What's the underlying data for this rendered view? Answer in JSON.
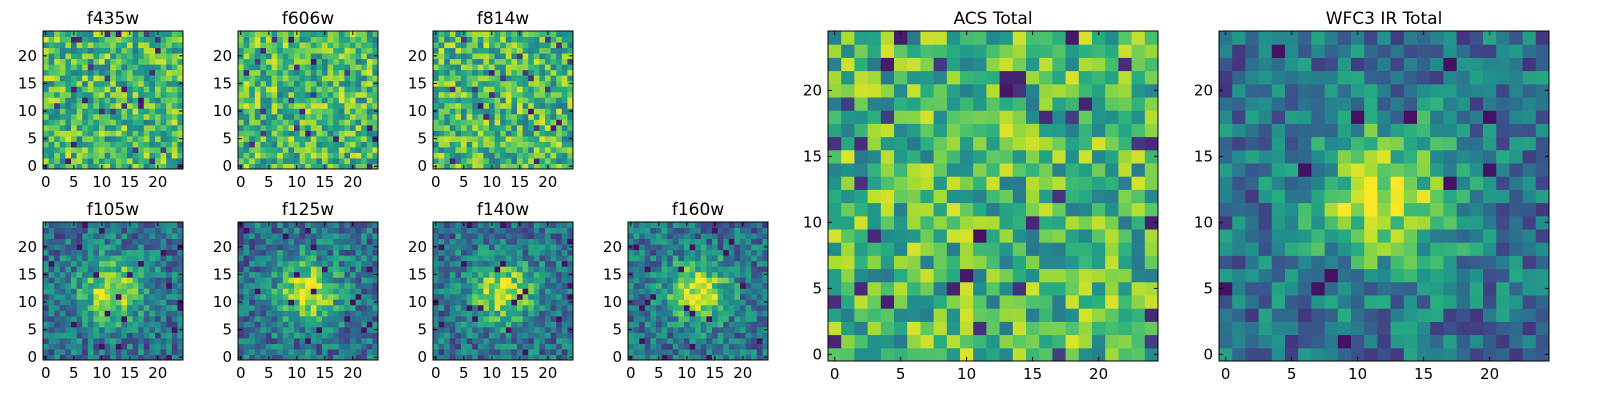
{
  "chart_data": [
    {
      "type": "heatmap",
      "title": "f435w",
      "xticks": [
        "0",
        "5",
        "10",
        "15",
        "20"
      ],
      "yticks": [
        "0",
        "5",
        "10",
        "15",
        "20"
      ],
      "xlim": [
        0,
        24
      ],
      "ylim": [
        0,
        24
      ],
      "grid": false,
      "colormap": "viridis",
      "pattern": "noise"
    },
    {
      "type": "heatmap",
      "title": "f606w",
      "xticks": [
        "0",
        "5",
        "10",
        "15",
        "20"
      ],
      "yticks": [
        "0",
        "5",
        "10",
        "15",
        "20"
      ],
      "xlim": [
        0,
        24
      ],
      "ylim": [
        0,
        24
      ],
      "grid": false,
      "colormap": "viridis",
      "pattern": "noise"
    },
    {
      "type": "heatmap",
      "title": "f814w",
      "xticks": [
        "0",
        "5",
        "10",
        "15",
        "20"
      ],
      "yticks": [
        "0",
        "5",
        "10",
        "15",
        "20"
      ],
      "xlim": [
        0,
        24
      ],
      "ylim": [
        0,
        24
      ],
      "grid": false,
      "colormap": "viridis",
      "pattern": "noise"
    },
    {
      "type": "heatmap",
      "title": "f105w",
      "xticks": [
        "0",
        "5",
        "10",
        "15",
        "20"
      ],
      "yticks": [
        "0",
        "5",
        "10",
        "15",
        "20"
      ],
      "xlim": [
        0,
        24
      ],
      "ylim": [
        0,
        24
      ],
      "grid": false,
      "colormap": "viridis",
      "pattern": "central-source"
    },
    {
      "type": "heatmap",
      "title": "f125w",
      "xticks": [
        "0",
        "5",
        "10",
        "15",
        "20"
      ],
      "yticks": [
        "0",
        "5",
        "10",
        "15",
        "20"
      ],
      "xlim": [
        0,
        24
      ],
      "ylim": [
        0,
        24
      ],
      "grid": false,
      "colormap": "viridis",
      "pattern": "central-source"
    },
    {
      "type": "heatmap",
      "title": "f140w",
      "xticks": [
        "0",
        "5",
        "10",
        "15",
        "20"
      ],
      "yticks": [
        "0",
        "5",
        "10",
        "15",
        "20"
      ],
      "xlim": [
        0,
        24
      ],
      "ylim": [
        0,
        24
      ],
      "grid": false,
      "colormap": "viridis",
      "pattern": "central-source"
    },
    {
      "type": "heatmap",
      "title": "f160w",
      "xticks": [
        "0",
        "5",
        "10",
        "15",
        "20"
      ],
      "yticks": [
        "0",
        "5",
        "10",
        "15",
        "20"
      ],
      "xlim": [
        0,
        24
      ],
      "ylim": [
        0,
        24
      ],
      "grid": false,
      "colormap": "viridis",
      "pattern": "central-source"
    },
    {
      "type": "heatmap",
      "title": "ACS Total",
      "xticks": [
        "0",
        "5",
        "10",
        "15",
        "20"
      ],
      "yticks": [
        "0",
        "5",
        "10",
        "15",
        "20"
      ],
      "xlim": [
        0,
        24
      ],
      "ylim": [
        0,
        24
      ],
      "grid": false,
      "colormap": "viridis",
      "pattern": "noise"
    },
    {
      "type": "heatmap",
      "title": "WFC3 IR Total",
      "xticks": [
        "0",
        "5",
        "10",
        "15",
        "20"
      ],
      "yticks": [
        "0",
        "5",
        "10",
        "15",
        "20"
      ],
      "xlim": [
        0,
        24
      ],
      "ylim": [
        0,
        24
      ],
      "grid": false,
      "colormap": "viridis",
      "pattern": "central-source"
    }
  ]
}
